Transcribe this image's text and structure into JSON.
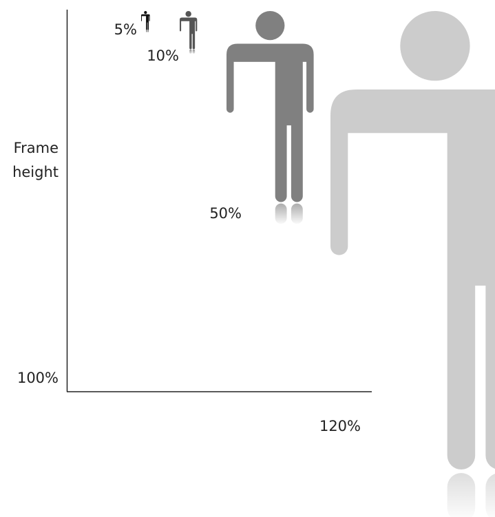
{
  "axis": {
    "label_line1": "Frame",
    "label_line2": "height",
    "tick_label": "100%"
  },
  "figures": [
    {
      "name": "figure-5-percent",
      "label": "5%",
      "color": "#111111",
      "percent": 5
    },
    {
      "name": "figure-10-percent",
      "label": "10%",
      "color": "#555555",
      "percent": 10
    },
    {
      "name": "figure-50-percent",
      "label": "50%",
      "color": "#808080",
      "percent": 50
    },
    {
      "name": "figure-120-percent",
      "label": "120%",
      "color": "#cccccc",
      "percent": 120
    }
  ]
}
